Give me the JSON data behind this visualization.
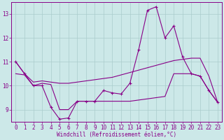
{
  "x": [
    0,
    1,
    2,
    3,
    4,
    5,
    6,
    7,
    8,
    9,
    10,
    11,
    12,
    13,
    14,
    15,
    16,
    17,
    18,
    19,
    20,
    21,
    22,
    23
  ],
  "line_main": [
    11.0,
    10.5,
    10.0,
    10.0,
    9.1,
    8.6,
    8.65,
    9.35,
    9.35,
    9.35,
    9.8,
    9.7,
    9.65,
    10.1,
    11.5,
    13.15,
    13.3,
    12.0,
    12.5,
    11.2,
    10.5,
    10.4,
    9.8,
    9.3
  ],
  "line_smooth": [
    11.0,
    10.5,
    10.15,
    10.2,
    10.15,
    10.1,
    10.1,
    10.15,
    10.2,
    10.25,
    10.3,
    10.35,
    10.45,
    10.55,
    10.65,
    10.75,
    10.85,
    10.95,
    11.05,
    11.1,
    11.15,
    11.15,
    10.4,
    9.3
  ],
  "line_flat": [
    10.5,
    10.45,
    10.0,
    10.1,
    10.05,
    9.0,
    9.0,
    9.35,
    9.35,
    9.35,
    9.35,
    9.35,
    9.35,
    9.35,
    9.4,
    9.45,
    9.5,
    9.55,
    10.5,
    10.5,
    10.5,
    10.4,
    9.8,
    9.3
  ],
  "line_color": "#880088",
  "background_color": "#cce8e8",
  "grid_color": "#aacccc",
  "xlabel": "Windchill (Refroidissement éolien,°C)",
  "ylim": [
    8.5,
    13.5
  ],
  "yticks": [
    9,
    10,
    11,
    12,
    13
  ],
  "xlim": [
    -0.5,
    23.5
  ],
  "xticks": [
    0,
    1,
    2,
    3,
    4,
    5,
    6,
    7,
    8,
    9,
    10,
    11,
    12,
    13,
    14,
    15,
    16,
    17,
    18,
    19,
    20,
    21,
    22,
    23
  ]
}
